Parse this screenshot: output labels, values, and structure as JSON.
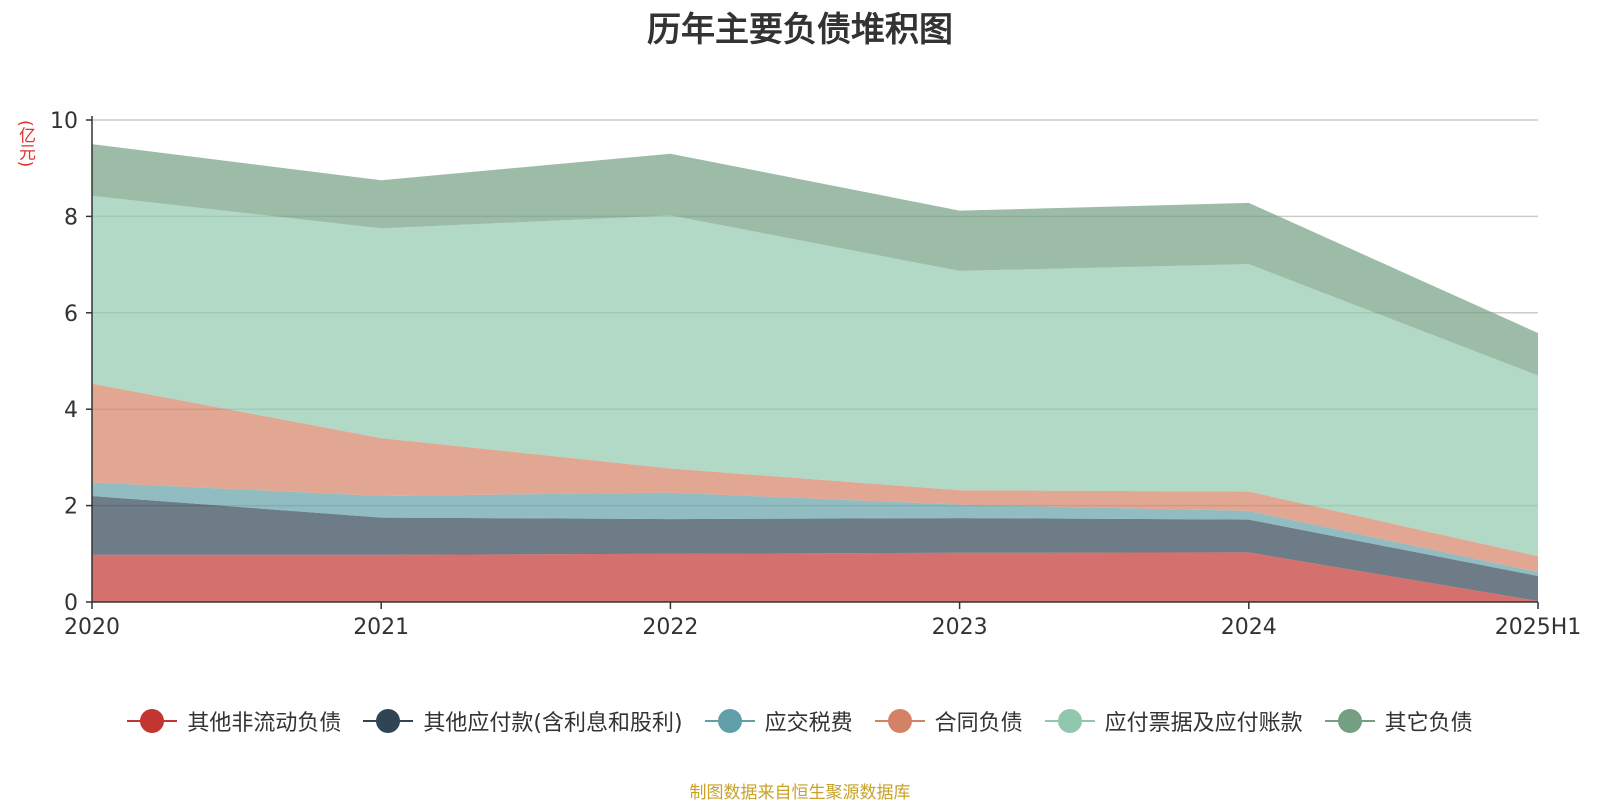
{
  "chart_data": {
    "type": "area",
    "stacked": true,
    "title": "历年主要负债堆积图",
    "unit_label": "(亿元)",
    "x": [
      "2020",
      "2021",
      "2022",
      "2023",
      "2024",
      "2025H1"
    ],
    "ylim": [
      0,
      10
    ],
    "yticks": [
      0,
      2,
      4,
      6,
      8,
      10
    ],
    "grid": true,
    "legend_position": "bottom",
    "series": [
      {
        "name": "其他非流动负债",
        "color": "#c23531",
        "values": [
          0.98,
          0.98,
          1.0,
          1.02,
          1.03,
          0.02
        ]
      },
      {
        "name": "其他应付款(含利息和股利)",
        "color": "#2f4554",
        "values": [
          1.22,
          0.77,
          0.72,
          0.72,
          0.68,
          0.52
        ]
      },
      {
        "name": "应交税费",
        "color": "#61a0a8",
        "values": [
          0.28,
          0.45,
          0.55,
          0.28,
          0.18,
          0.08
        ]
      },
      {
        "name": "合同负债",
        "color": "#d48265",
        "values": [
          2.05,
          1.2,
          0.5,
          0.3,
          0.4,
          0.33
        ]
      },
      {
        "name": "应付票据及应付账款",
        "color": "#91c7ae",
        "values": [
          3.9,
          4.35,
          5.25,
          4.55,
          4.72,
          3.75
        ]
      },
      {
        "name": "其它负债",
        "color": "#749f83",
        "values": [
          1.07,
          1.0,
          1.28,
          1.25,
          1.27,
          0.88
        ]
      }
    ]
  },
  "footer": {
    "source": "制图数据来自恒生聚源数据库"
  }
}
